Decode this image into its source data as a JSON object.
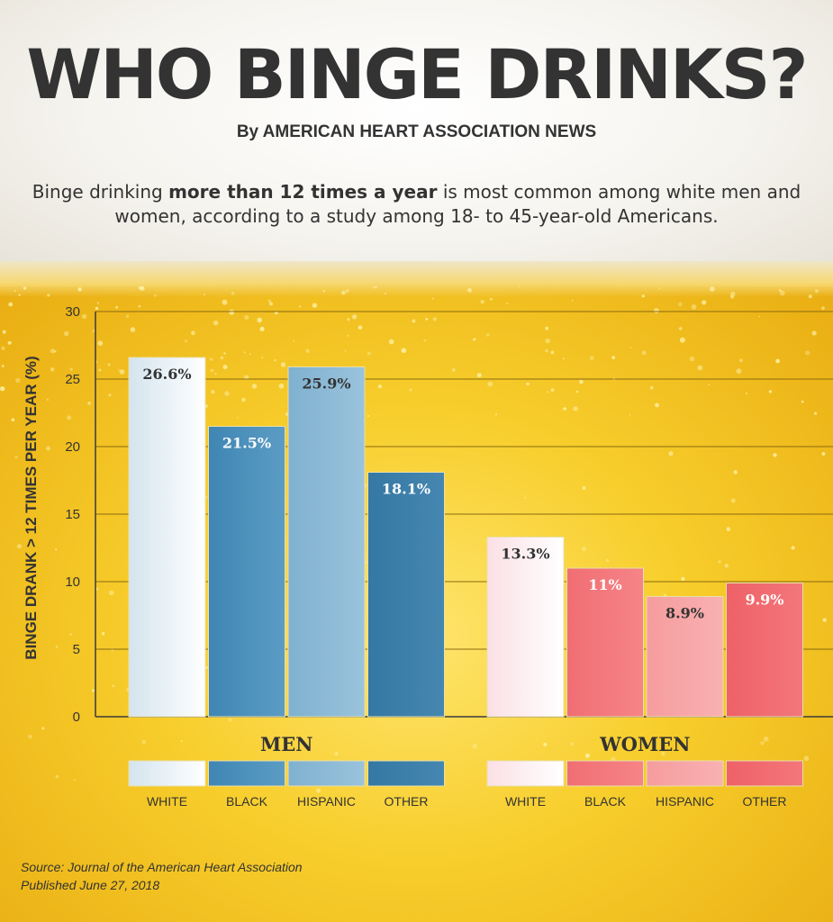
{
  "header": {
    "title": "WHO BINGE DRINKS?",
    "byline": "By AMERICAN HEART ASSOCIATION NEWS",
    "intro_pre": "Binge drinking ",
    "intro_bold": "more than 12 times a year",
    "intro_post": " is most common among white men and women, according to a study among 18- to 45-year-old Americans."
  },
  "chart_data": {
    "type": "bar",
    "title": "",
    "ylabel": "BINGE DRANK > 12 TIMES PER YEAR (%)",
    "ylim": [
      0,
      30
    ],
    "yticks": [
      0,
      5,
      10,
      15,
      20,
      25,
      30
    ],
    "grid": true,
    "groups": [
      {
        "name": "MEN",
        "categories": [
          "WHITE",
          "BLACK",
          "HISPANIC",
          "OTHER"
        ],
        "values": [
          26.6,
          21.5,
          25.9,
          18.1
        ],
        "labels": [
          "26.6%",
          "21.5%",
          "25.9%",
          "18.1%"
        ],
        "colors": [
          "#f2f6fa",
          "#4a90bb",
          "#8ab8d4",
          "#3a7ca6"
        ]
      },
      {
        "name": "WOMEN",
        "categories": [
          "WHITE",
          "BLACK",
          "HISPANIC",
          "OTHER"
        ],
        "values": [
          13.3,
          11,
          8.9,
          9.9
        ],
        "labels": [
          "13.3%",
          "11%",
          "8.9%",
          "9.9%"
        ],
        "colors": [
          "#fdf0f2",
          "#f3777b",
          "#f7a5a6",
          "#f0696e"
        ]
      }
    ]
  },
  "footer": {
    "source": "Source: Journal of the American Heart Association",
    "published": "Published June 27, 2018"
  }
}
